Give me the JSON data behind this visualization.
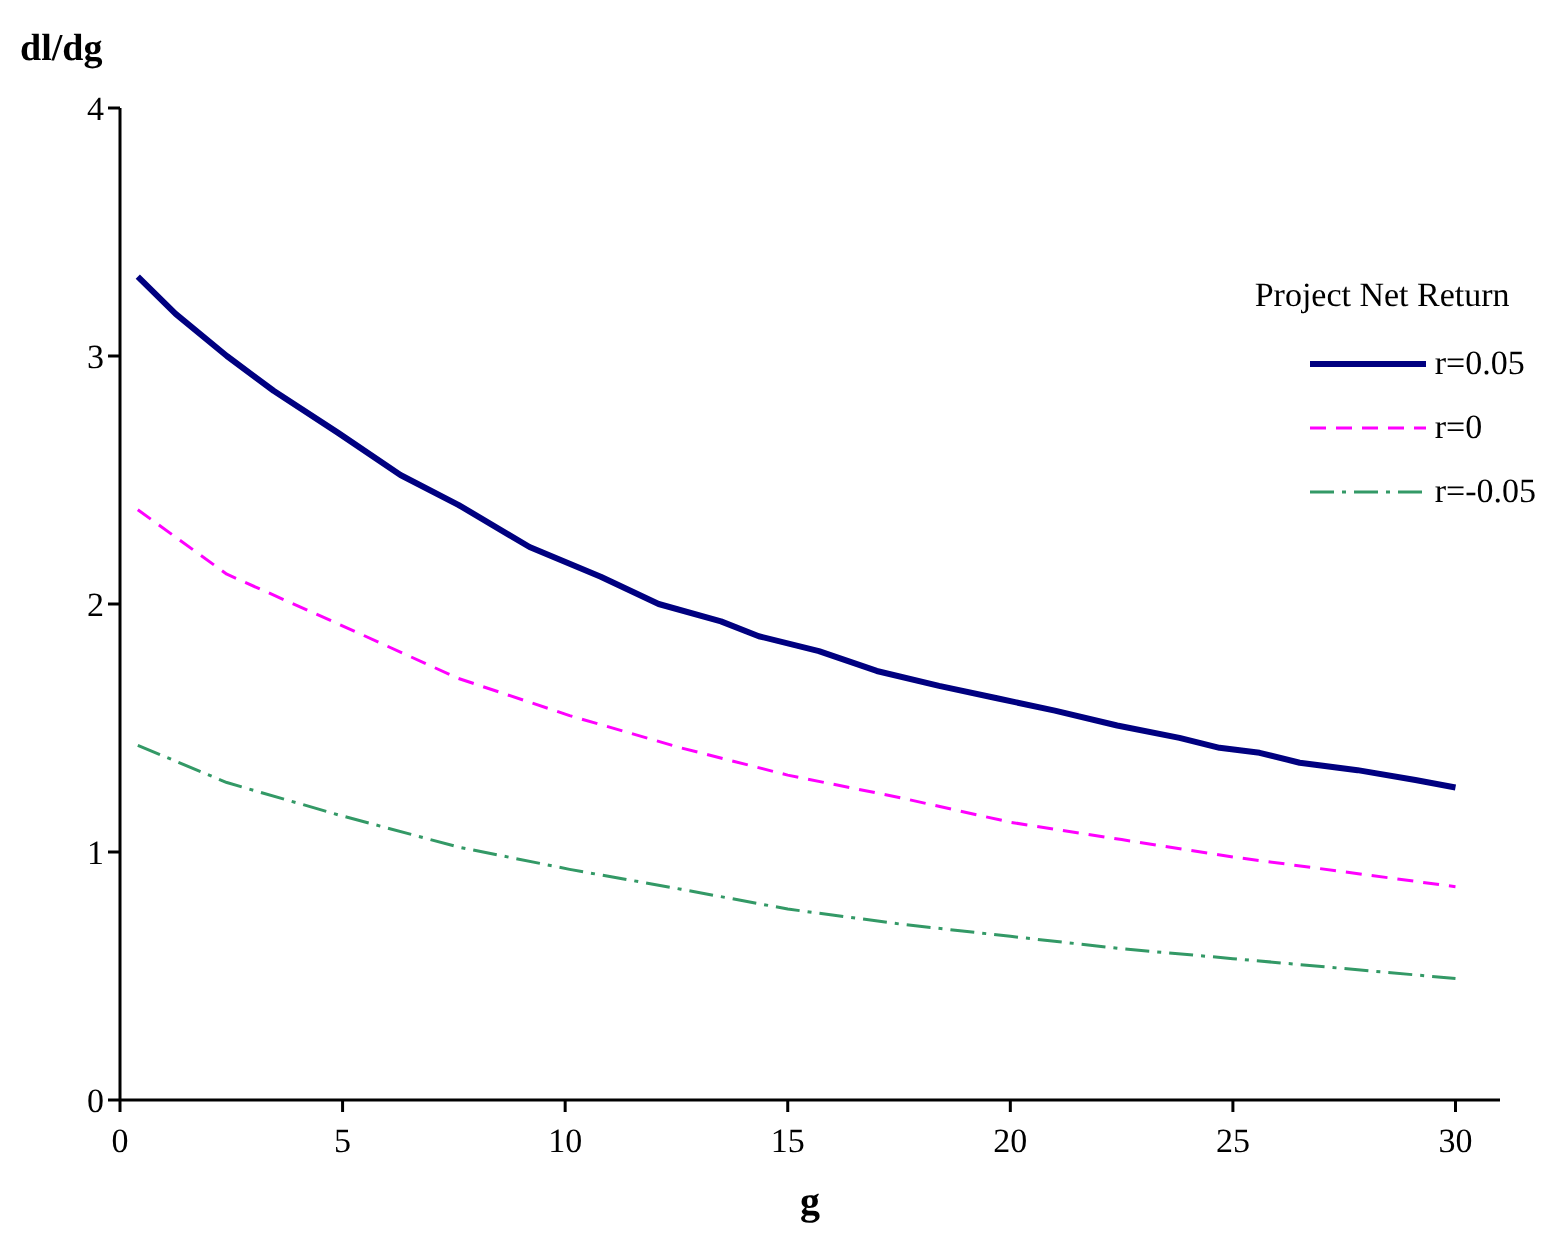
{
  "chart_data": {
    "type": "line",
    "xlabel": "g",
    "ylabel": "dl/dg",
    "legend_title": "Project Net Return",
    "legend": "top right",
    "grid": false,
    "marker": "none",
    "xlim": [
      0,
      31
    ],
    "xticks": [
      0,
      5,
      10,
      15,
      20,
      25,
      30
    ],
    "ylim": [
      0,
      4
    ],
    "yticks": [
      0,
      1,
      2,
      3,
      4
    ],
    "series": [
      {
        "name": "r=0.05",
        "color": "#000080",
        "line_style": "solid",
        "x": [
          0.4,
          1.25,
          2.4,
          3.45,
          4.9,
          6.3,
          7.6,
          9.2,
          10.8,
          12.1,
          13.5,
          14.35,
          15.7,
          17,
          18.4,
          19.7,
          21,
          22.4,
          23.8,
          24.7,
          25.6,
          26.5,
          27.8,
          29.1,
          30
        ],
        "values": [
          3.32,
          3.17,
          3.0,
          2.86,
          2.69,
          2.52,
          2.4,
          2.23,
          2.11,
          2.0,
          1.93,
          1.87,
          1.81,
          1.73,
          1.67,
          1.62,
          1.57,
          1.51,
          1.46,
          1.42,
          1.4,
          1.36,
          1.33,
          1.29,
          1.26
        ]
      },
      {
        "name": "r=0",
        "color": "#ff00ff",
        "line_style": "dashed",
        "x": [
          0.4,
          2.4,
          4.9,
          7.6,
          10.1,
          12.6,
          15,
          17.5,
          20,
          22.5,
          25,
          27.5,
          30
        ],
        "values": [
          2.38,
          2.12,
          1.92,
          1.7,
          1.55,
          1.42,
          1.31,
          1.22,
          1.12,
          1.05,
          0.98,
          0.92,
          0.86
        ]
      },
      {
        "name": "r=-0.05",
        "color": "#339966",
        "line_style": "dashdot",
        "x": [
          0.4,
          2.4,
          4.9,
          7.6,
          10.1,
          12.6,
          15,
          17.5,
          20,
          22.5,
          25,
          27.5,
          30
        ],
        "values": [
          1.43,
          1.28,
          1.15,
          1.02,
          0.93,
          0.85,
          0.77,
          0.71,
          0.66,
          0.61,
          0.57,
          0.53,
          0.49
        ]
      }
    ]
  }
}
